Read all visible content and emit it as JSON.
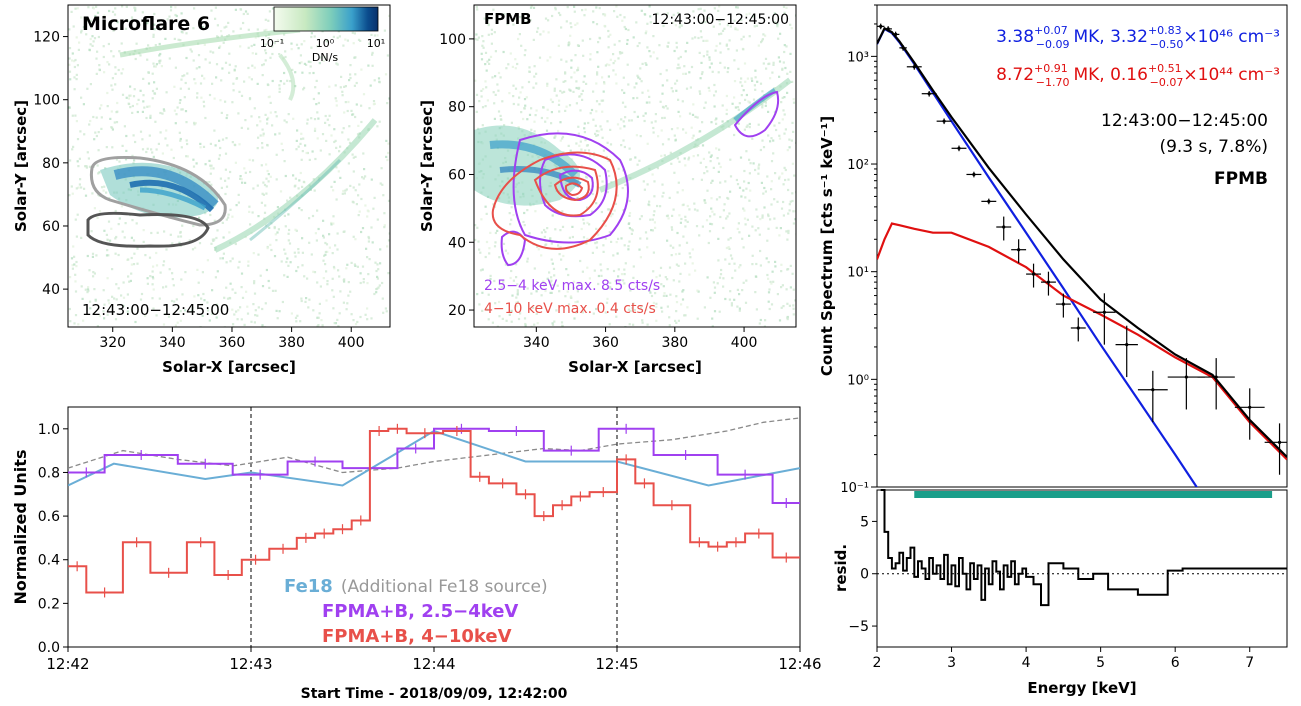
{
  "chart_data": [
    {
      "type": "heatmap",
      "title": "Microflare 6",
      "time_label": "12:43:00−12:45:00",
      "xlabel": "Solar-X [arcsec]",
      "ylabel": "Solar-Y [arcsec]",
      "xlim": [
        305,
        413
      ],
      "ylim": [
        28,
        130
      ],
      "xticks": [
        320,
        340,
        360,
        380,
        400
      ],
      "yticks": [
        40,
        60,
        80,
        100,
        120
      ],
      "colorbar": {
        "unit": "DN/s",
        "ticks": [
          "10⁻¹",
          "10⁰",
          "10¹"
        ],
        "colors": [
          "#f4fbef",
          "#c8e9c1",
          "#7ccdbb",
          "#3aa0cb",
          "#0b4d8e",
          "#08306b"
        ]
      }
    },
    {
      "type": "heatmap",
      "title": "FPMB",
      "time_label": "12:43:00−12:45:00",
      "xlabel": "Solar-X [arcsec]",
      "ylabel": "Solar-Y [arcsec]",
      "xlim": [
        322,
        415
      ],
      "ylim": [
        15,
        110
      ],
      "xticks": [
        340,
        360,
        380,
        400
      ],
      "yticks": [
        20,
        40,
        60,
        80,
        100
      ],
      "contours": [
        {
          "label": "2.5−4 keV max. 8.5 cts/s",
          "color": "#a040f0"
        },
        {
          "label": "4−10 keV max. 0.4 cts/s",
          "color": "#e8504a"
        }
      ]
    },
    {
      "type": "line",
      "xlabel": "Start Time - 2018/09/09, 12:42:00",
      "ylabel": "Normalized Units",
      "x_ticklabels": [
        "12:42",
        "12:43",
        "12:44",
        "12:45",
        "12:46"
      ],
      "ylim": [
        0.0,
        1.1
      ],
      "yticks": [
        "0.0",
        "0.2",
        "0.4",
        "0.6",
        "0.8",
        "1.0"
      ],
      "vlines_minutes": [
        1,
        3
      ],
      "series": [
        {
          "name": "Fe18",
          "note": "(Additional Fe18 source)",
          "color": "#6aaed6",
          "x": [
            0,
            0.25,
            0.75,
            1,
            1.5,
            2,
            2.5,
            3,
            3.5,
            4
          ],
          "values": [
            0.74,
            0.84,
            0.77,
            0.8,
            0.74,
            0.99,
            0.85,
            0.85,
            0.74,
            0.82
          ]
        },
        {
          "name": "FPMA+B, 2.5−4keV",
          "color": "#a040f0",
          "edges": [
            0,
            0.2,
            0.6,
            0.9,
            1.2,
            1.5,
            1.8,
            2.0,
            2.3,
            2.6,
            2.9,
            3.2,
            3.55,
            3.85,
            4.0
          ],
          "values": [
            0.8,
            0.88,
            0.84,
            0.79,
            0.85,
            0.82,
            0.91,
            1.0,
            0.99,
            0.9,
            1.0,
            0.88,
            0.79,
            0.66
          ]
        },
        {
          "name": "FPMA+B, 4−10keV",
          "color": "#e8504a",
          "edges": [
            0,
            0.1,
            0.3,
            0.45,
            0.65,
            0.8,
            0.95,
            1.1,
            1.25,
            1.35,
            1.45,
            1.55,
            1.65,
            1.75,
            1.85,
            2.05,
            2.2,
            2.3,
            2.45,
            2.55,
            2.65,
            2.75,
            2.85,
            3.0,
            3.1,
            3.2,
            3.4,
            3.5,
            3.6,
            3.7,
            3.85,
            4.0
          ],
          "values": [
            0.37,
            0.25,
            0.48,
            0.34,
            0.48,
            0.33,
            0.4,
            0.45,
            0.5,
            0.52,
            0.54,
            0.58,
            0.99,
            1.0,
            0.98,
            0.99,
            0.78,
            0.75,
            0.7,
            0.6,
            0.65,
            0.69,
            0.71,
            0.86,
            0.75,
            0.65,
            0.48,
            0.46,
            0.48,
            0.52,
            0.41
          ]
        },
        {
          "name": "Additional Fe18 source",
          "color": "#8a8a8a",
          "style": "dashed",
          "x": [
            0,
            0.3,
            0.6,
            0.9,
            1.2,
            1.5,
            1.8,
            2.0,
            2.3,
            2.6,
            2.8,
            3.0,
            3.3,
            3.6,
            3.8,
            4.0
          ],
          "values": [
            0.82,
            0.9,
            0.86,
            0.83,
            0.87,
            0.8,
            0.82,
            0.85,
            0.88,
            0.91,
            0.9,
            0.93,
            0.95,
            0.99,
            1.03,
            1.05
          ]
        }
      ]
    },
    {
      "type": "scatter",
      "title": "FPMB",
      "time_label": "12:43:00−12:45:00",
      "stats": "(9.3 s, 7.8%)",
      "ylabel": "Count Spectrum [cts s⁻¹ keV⁻¹]",
      "xlim": [
        2,
        7.5
      ],
      "ylim": [
        0.1,
        3000
      ],
      "ylog": true,
      "yticks": [
        "10⁻¹",
        "10⁰",
        "10¹",
        "10²",
        "10³"
      ],
      "fit_labels": [
        {
          "text": "3.38",
          "sup": "+0.07",
          "sub": "−0.09",
          "rest": "MK, 3.32",
          "sup2": "+0.83",
          "sub2": "−0.50",
          "tail": "×10⁴⁶ cm⁻³",
          "color": "#1020e0"
        },
        {
          "text": "8.72",
          "sup": "+0.91",
          "sub": "−1.70",
          "rest": "MK, 0.16",
          "sup2": "+0.51",
          "sub2": "−0.07",
          "tail": "×10⁴⁴ cm⁻³",
          "color": "#e01010"
        }
      ],
      "data_points": {
        "x": [
          2.05,
          2.15,
          2.25,
          2.35,
          2.5,
          2.7,
          2.9,
          3.1,
          3.3,
          3.5,
          3.7,
          3.9,
          4.1,
          4.3,
          4.5,
          4.7,
          5.05,
          5.35,
          5.7,
          6.15,
          6.55,
          7.0,
          7.4
        ],
        "y": [
          1900,
          1800,
          1600,
          1200,
          800,
          450,
          250,
          140,
          80,
          45,
          26,
          16,
          9.5,
          8,
          5,
          3,
          4.2,
          2.1,
          0.8,
          1.05,
          1.05,
          0.55,
          0.26
        ],
        "xerr": [
          0.05,
          0.05,
          0.05,
          0.05,
          0.1,
          0.1,
          0.1,
          0.1,
          0.1,
          0.1,
          0.1,
          0.1,
          0.1,
          0.1,
          0.1,
          0.1,
          0.15,
          0.15,
          0.2,
          0.25,
          0.25,
          0.2,
          0.2
        ]
      },
      "models": {
        "x": [
          2.0,
          2.1,
          2.2,
          2.3,
          2.5,
          2.75,
          3.0,
          3.5,
          4.0,
          4.5,
          5.0,
          5.5,
          6.0,
          6.5,
          7.0,
          7.5
        ],
        "cool": [
          1300,
          1800,
          1650,
          1350,
          850,
          460,
          250,
          75,
          23,
          7,
          2.1,
          0.65,
          0.2,
          0.06,
          0.02,
          0.006
        ],
        "hot": [
          13,
          20,
          28,
          27,
          25,
          23,
          23,
          17,
          11,
          6,
          4,
          2.6,
          1.6,
          1.05,
          0.4,
          0.18
        ],
        "total": [
          1310,
          1820,
          1680,
          1380,
          875,
          483,
          273,
          92,
          34,
          13,
          5.5,
          3.0,
          1.7,
          1.1,
          0.42,
          0.19
        ]
      },
      "colors": {
        "cool": "#1020e0",
        "hot": "#e01010",
        "total": "#000000",
        "band": "#1a9e8a"
      },
      "fit_range_keV": [
        2.5,
        7.3
      ]
    },
    {
      "type": "line",
      "xlabel": "Energy [keV]",
      "ylabel": "resid.",
      "xlim": [
        2,
        7.5
      ],
      "ylim": [
        -7,
        8
      ],
      "xticks": [
        2,
        3,
        4,
        5,
        6,
        7
      ],
      "yticks": [
        -5,
        0,
        5
      ],
      "residuals": {
        "edges": [
          2.05,
          2.1,
          2.15,
          2.2,
          2.25,
          2.3,
          2.35,
          2.4,
          2.45,
          2.5,
          2.55,
          2.6,
          2.65,
          2.7,
          2.75,
          2.8,
          2.85,
          2.9,
          2.95,
          3.0,
          3.05,
          3.1,
          3.15,
          3.2,
          3.25,
          3.3,
          3.35,
          3.4,
          3.45,
          3.5,
          3.55,
          3.6,
          3.65,
          3.7,
          3.75,
          3.8,
          3.85,
          3.9,
          3.95,
          4.0,
          4.1,
          4.2,
          4.3,
          4.5,
          4.7,
          4.9,
          5.1,
          5.5,
          5.9,
          6.1,
          6.5,
          7.5
        ],
        "values": [
          8,
          4,
          1.5,
          0.5,
          1,
          2,
          0.3,
          1.5,
          2.5,
          -0.3,
          1.2,
          0.5,
          -0.5,
          1.5,
          0,
          0.8,
          -0.5,
          1.8,
          -1,
          0.8,
          -1.2,
          1.5,
          0,
          -1.5,
          1,
          -0.5,
          0.8,
          -2.5,
          0.5,
          -1,
          1.2,
          0.2,
          -1.5,
          0.8,
          -0.3,
          1.2,
          -1,
          0,
          0.5,
          -0.3,
          -1,
          -3,
          1,
          0.5,
          -0.5,
          0,
          -1.5,
          -2,
          0.3,
          0.5,
          0.5
        ]
      }
    }
  ]
}
